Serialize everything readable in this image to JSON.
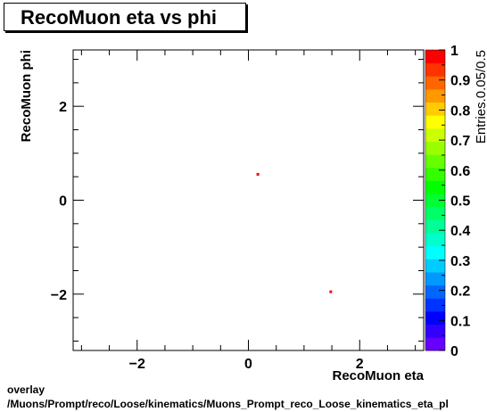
{
  "chart_data": {
    "type": "heatmap",
    "title": "RecoMuon eta vs phi",
    "xlabel": "RecoMuon eta",
    "ylabel": "RecoMuon phi",
    "zlabel": "Entries.0.05/0.5",
    "xlim": [
      -3.15,
      3.15
    ],
    "ylim": [
      -3.2,
      3.2
    ],
    "zlim": [
      0,
      1
    ],
    "x_ticks": [
      "−2",
      "0",
      "2"
    ],
    "x_tick_values": [
      -2,
      0,
      2
    ],
    "y_ticks": [
      "−2",
      "0",
      "2"
    ],
    "y_tick_values": [
      -2,
      0,
      2
    ],
    "z_ticks": [
      "0",
      "0.1",
      "0.2",
      "0.3",
      "0.4",
      "0.5",
      "0.6",
      "0.7",
      "0.8",
      "0.9",
      "1"
    ],
    "z_tick_values": [
      0,
      0.1,
      0.2,
      0.3,
      0.4,
      0.5,
      0.6,
      0.7,
      0.8,
      0.9,
      1
    ],
    "points": [
      {
        "x": 0.17,
        "y": 0.55,
        "z": 1
      },
      {
        "x": 1.48,
        "y": -1.95,
        "z": 1
      }
    ],
    "palette": [
      "#6600ff",
      "#3300ff",
      "#0000ff",
      "#0033ff",
      "#0066ff",
      "#0099ff",
      "#00ccff",
      "#00ffff",
      "#00ffcc",
      "#00ff99",
      "#00ff66",
      "#00ff33",
      "#00ff00",
      "#33ff00",
      "#66ff00",
      "#99ff00",
      "#ccff00",
      "#ffff00",
      "#ffcc00",
      "#ff9900",
      "#ff6600",
      "#ff3300",
      "#ff0000"
    ],
    "grid": false,
    "legend": "colorbar-right"
  },
  "footer": {
    "line1": "overlay",
    "line2": "/Muons/Prompt/reco/Loose/kinematics/Muons_Prompt_reco_Loose_kinematics_eta_pl"
  }
}
